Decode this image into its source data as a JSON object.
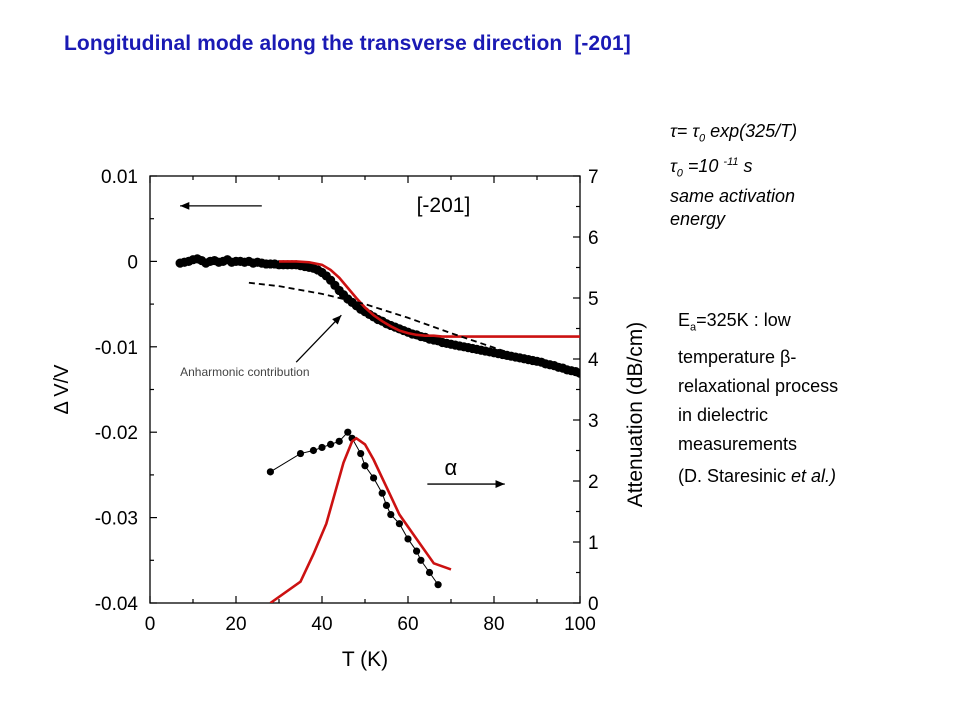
{
  "title": "Longitudinal mode along the transverse direction  [-201]",
  "formula": {
    "line1_tau": "τ",
    "line1_eq": "= ",
    "line1_tau0": "τ",
    "line1_sub0": "0",
    "line1_rest": " exp(325/T)",
    "line2_tau": "τ",
    "line2_sub": "0",
    "line2_mid": " =10 ",
    "line2_sup": "-11",
    "line2_unit": " s",
    "line3": "same activation",
    "line4": "energy"
  },
  "note": {
    "line1_e": "E",
    "line1_sub": "a",
    "line1_rest": "=325K : low",
    "line2": "temperature β-",
    "line3": "relaxational process",
    "line4": "in dielectric",
    "line5": "measurements"
  },
  "reference": {
    "prefix": "(D. Staresinic ",
    "etal": "et al.)"
  },
  "chart_data": {
    "type": "scatter",
    "title": "",
    "inset_label": "[-201]",
    "xlabel": "T  (K)",
    "ylabel_left": "Δ V/V",
    "ylabel_right": "Attenuation  (dB/cm)",
    "xlim": [
      0,
      100
    ],
    "ylim_left": [
      -0.04,
      0.01
    ],
    "ylim_right": [
      0,
      7
    ],
    "x_ticks": [
      "0",
      "20",
      "40",
      "60",
      "80",
      "100"
    ],
    "y_left_ticks": [
      "0.01",
      "0",
      "-0.01",
      "-0.02",
      "-0.03",
      "-0.04"
    ],
    "y_right_ticks": [
      "7",
      "6",
      "5",
      "4",
      "3",
      "2",
      "1",
      "0"
    ],
    "annotations": {
      "anharmonic": "Anharmonic contribution",
      "alpha": "α"
    },
    "colors": {
      "fit": "#cc1111",
      "data": "#000000"
    },
    "series": [
      {
        "axis": "left",
        "style": "dense-markers",
        "x": [
          7,
          8,
          9,
          10,
          11,
          12,
          13,
          14,
          15,
          16,
          17,
          18,
          19,
          20,
          21,
          22,
          23,
          24,
          25,
          26,
          27,
          28,
          29,
          30,
          31,
          32,
          33,
          34,
          35,
          36,
          37,
          38,
          39,
          40,
          41,
          42,
          43,
          44,
          45,
          46,
          47,
          48,
          49,
          50,
          51,
          52,
          53,
          54,
          55,
          56,
          57,
          58,
          59,
          60,
          61,
          62,
          63,
          64,
          65,
          66,
          67,
          68,
          69,
          70,
          71,
          72,
          73,
          74,
          75,
          76,
          77,
          78,
          79,
          80,
          81,
          82,
          83,
          84,
          85,
          86,
          87,
          88,
          89,
          90,
          91,
          92,
          93,
          94,
          95,
          96,
          97,
          98,
          99,
          100
        ],
        "y": [
          -0.0002,
          -0.0001,
          0.0,
          0.0002,
          0.0003,
          0.0001,
          -0.0002,
          0.0,
          0.0001,
          -0.0001,
          0.0,
          0.0002,
          -0.0001,
          0.0,
          0.0,
          -0.0001,
          0.0,
          -0.0002,
          -0.0001,
          -0.0002,
          -0.0003,
          -0.0003,
          -0.0003,
          -0.0004,
          -0.0004,
          -0.0004,
          -0.0004,
          -0.0004,
          -0.0005,
          -0.0006,
          -0.0007,
          -0.0008,
          -0.001,
          -0.0013,
          -0.0017,
          -0.0022,
          -0.0028,
          -0.0034,
          -0.0039,
          -0.0044,
          -0.0048,
          -0.0052,
          -0.0056,
          -0.0059,
          -0.0062,
          -0.0065,
          -0.0068,
          -0.007,
          -0.0073,
          -0.0075,
          -0.0077,
          -0.0079,
          -0.0081,
          -0.0083,
          -0.0085,
          -0.0086,
          -0.0088,
          -0.0089,
          -0.0091,
          -0.0092,
          -0.0093,
          -0.0095,
          -0.0096,
          -0.0097,
          -0.0098,
          -0.0099,
          -0.01,
          -0.0101,
          -0.0102,
          -0.0103,
          -0.0104,
          -0.0105,
          -0.0106,
          -0.0107,
          -0.0108,
          -0.0109,
          -0.011,
          -0.0111,
          -0.0112,
          -0.0113,
          -0.0114,
          -0.0115,
          -0.0116,
          -0.0117,
          -0.0118,
          -0.012,
          -0.0121,
          -0.0122,
          -0.0124,
          -0.0125,
          -0.0127,
          -0.0128,
          -0.0129,
          -0.0131
        ]
      },
      {
        "axis": "left",
        "style": "red-line",
        "x": [
          30,
          34,
          37,
          40,
          42,
          44,
          46,
          48,
          50,
          52,
          54,
          56,
          58,
          60,
          62,
          64,
          66,
          68,
          70,
          75,
          80,
          85,
          90,
          95,
          100
        ],
        "y": [
          0.0,
          0.0,
          -0.0001,
          -0.0004,
          -0.001,
          -0.0019,
          -0.0031,
          -0.0043,
          -0.0054,
          -0.0063,
          -0.007,
          -0.0076,
          -0.0081,
          -0.0084,
          -0.0086,
          -0.0087,
          -0.0087,
          -0.0088,
          -0.0088,
          -0.0088,
          -0.0088,
          -0.0088,
          -0.0088,
          -0.0088,
          -0.0088
        ]
      },
      {
        "axis": "left",
        "style": "dashed-line",
        "x": [
          23,
          30,
          40,
          50,
          60,
          70,
          80,
          90,
          100
        ],
        "y": [
          -0.0025,
          -0.0029,
          -0.0038,
          -0.005,
          -0.0066,
          -0.0084,
          -0.0101,
          -0.0118,
          -0.0135
        ]
      },
      {
        "axis": "right",
        "style": "markers-line",
        "x": [
          28,
          35,
          38,
          40,
          42,
          44,
          46,
          47,
          49,
          50,
          52,
          54,
          55,
          56,
          58,
          60,
          62,
          63,
          65,
          67
        ],
        "y": [
          2.15,
          2.45,
          2.5,
          2.55,
          2.6,
          2.65,
          2.8,
          2.7,
          2.45,
          2.25,
          2.05,
          1.8,
          1.6,
          1.45,
          1.3,
          1.05,
          0.85,
          0.7,
          0.5,
          0.3
        ]
      },
      {
        "axis": "right",
        "style": "red-line",
        "x": [
          28,
          35,
          38,
          41,
          43,
          45,
          47,
          48,
          50,
          52,
          55,
          58,
          62,
          66,
          70
        ],
        "y": [
          0.0,
          0.35,
          0.8,
          1.3,
          1.8,
          2.3,
          2.65,
          2.7,
          2.6,
          2.35,
          1.9,
          1.45,
          1.05,
          0.65,
          0.55
        ]
      }
    ]
  }
}
